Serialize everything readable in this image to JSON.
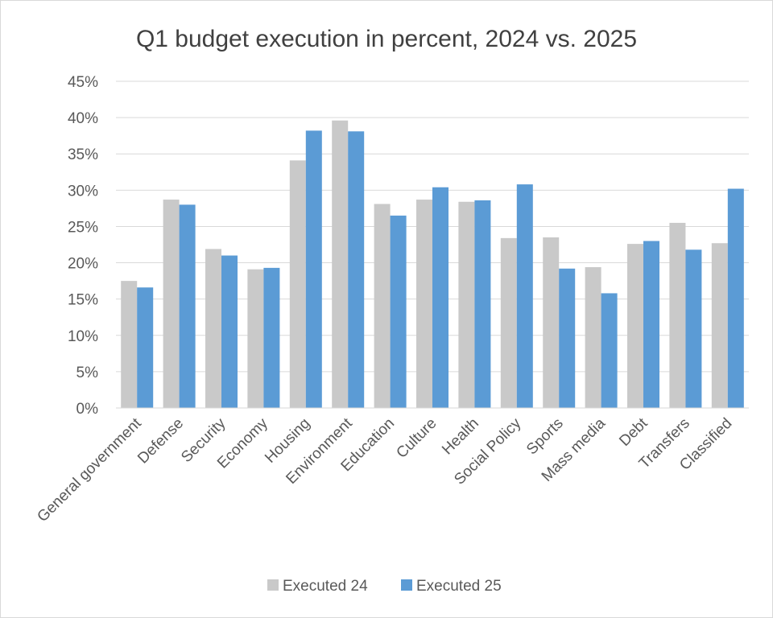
{
  "chart_data": {
    "type": "bar",
    "title": "Q1 budget execution in percent, 2024 vs. 2025",
    "xlabel": "",
    "ylabel": "",
    "ylim": [
      0,
      45
    ],
    "yticks": [
      0,
      5,
      10,
      15,
      20,
      25,
      30,
      35,
      40,
      45
    ],
    "ytick_labels": [
      "0%",
      "5%",
      "10%",
      "15%",
      "20%",
      "25%",
      "30%",
      "35%",
      "40%",
      "45%"
    ],
    "grid": true,
    "legend_position": "bottom",
    "categories": [
      "General government",
      "Defense",
      "Security",
      "Economy",
      "Housing",
      "Environment",
      "Education",
      "Culture",
      "Health",
      "Social Policy",
      "Sports",
      "Mass media",
      "Debt",
      "Transfers",
      "Classified"
    ],
    "series": [
      {
        "name": "Executed 24",
        "color": "#c9c9c9",
        "values": [
          17.5,
          28.7,
          21.9,
          19.1,
          34.1,
          39.6,
          28.1,
          28.7,
          28.4,
          23.4,
          23.5,
          19.4,
          22.6,
          25.5,
          22.7
        ]
      },
      {
        "name": "Executed 25",
        "color": "#5b9bd5",
        "values": [
          16.6,
          28.0,
          21.0,
          19.3,
          38.2,
          38.1,
          26.5,
          30.4,
          28.6,
          30.8,
          19.2,
          15.8,
          23.0,
          21.8,
          30.2
        ]
      }
    ]
  }
}
